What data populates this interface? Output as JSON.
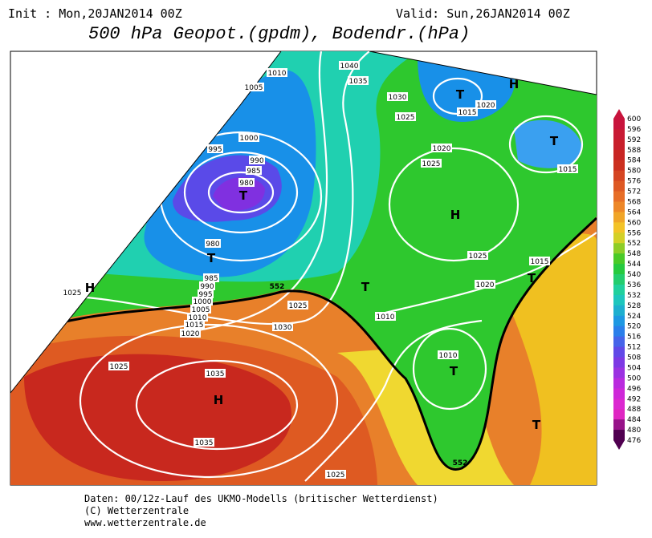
{
  "header": {
    "init": "Init : Mon,20JAN2014 00Z",
    "valid": "Valid: Sun,26JAN2014 00Z",
    "title": "500 hPa Geopot.(gpdm), Bodendr.(hPa)"
  },
  "isobar_labels": [
    "1040",
    "1035",
    "1030",
    "1025",
    "1015",
    "1020",
    "1020",
    "1025",
    "1015",
    "1010",
    "1005",
    "1000",
    "995",
    "990",
    "985",
    "980",
    "980",
    "985",
    "990",
    "995",
    "1000",
    "1005",
    "1010",
    "1015",
    "1020",
    "1025",
    "1025",
    "1030",
    "1025",
    "1035",
    "1035",
    "1010",
    "1010",
    "1025",
    "1020",
    "1015",
    "1025"
  ],
  "contour_labels": [
    "552",
    "552"
  ],
  "centers": [
    "H",
    "T",
    "T",
    "T",
    "T",
    "H",
    "H",
    "T",
    "T",
    "H",
    "T",
    "T"
  ],
  "colorbar": {
    "labels": [
      600,
      596,
      592,
      588,
      584,
      580,
      576,
      572,
      568,
      564,
      560,
      556,
      552,
      548,
      544,
      540,
      536,
      532,
      528,
      524,
      520,
      516,
      512,
      508,
      504,
      500,
      496,
      492,
      488,
      484,
      480,
      476
    ]
  },
  "footer": {
    "line1": "Daten: 00/12z-Lauf des UKMO-Modells (britischer Wetterdienst)",
    "line2": "(C) Wetterzentrale",
    "line3": "www.wetterzentrale.de"
  }
}
